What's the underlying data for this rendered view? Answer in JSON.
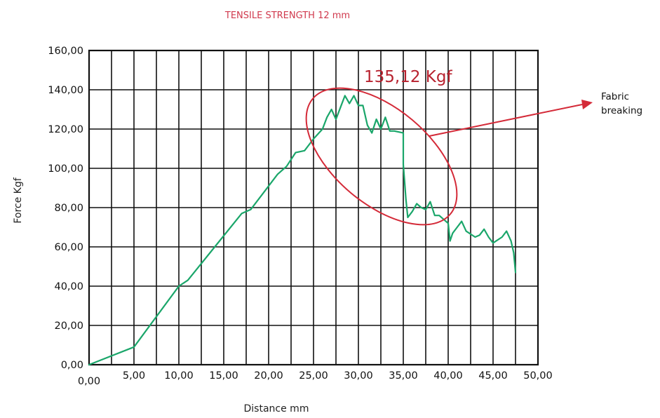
{
  "chart_data": {
    "type": "line",
    "title": "TENSILE STRENGTH 12 mm",
    "xlabel": "Distance mm",
    "ylabel": "Force Kgf",
    "xlim": [
      0,
      50
    ],
    "ylim": [
      0,
      160
    ],
    "grid": true,
    "x_ticks": [
      "0,00",
      "5,00",
      "10,00",
      "15,00",
      "20,00",
      "25,00",
      "30,00",
      "35,00",
      "40,00",
      "45,00",
      "50,00"
    ],
    "y_ticks": [
      "0,00",
      "20,00",
      "40,00",
      "60,00",
      "80,00",
      "100,00",
      "120,00",
      "140,00",
      "160,00"
    ],
    "series": [
      {
        "color": "#1aa66a",
        "points": [
          [
            0,
            0
          ],
          [
            5,
            9
          ],
          [
            10,
            40
          ],
          [
            11,
            43
          ],
          [
            14,
            60
          ],
          [
            17,
            77
          ],
          [
            18,
            79
          ],
          [
            20,
            91
          ],
          [
            21,
            97
          ],
          [
            22,
            101
          ],
          [
            23,
            108
          ],
          [
            24,
            109
          ],
          [
            25,
            115
          ],
          [
            26,
            120
          ],
          [
            26.5,
            126
          ],
          [
            27,
            130
          ],
          [
            27.5,
            125
          ],
          [
            28,
            131
          ],
          [
            28.5,
            137
          ],
          [
            29,
            133
          ],
          [
            29.5,
            137
          ],
          [
            30,
            132
          ],
          [
            30.5,
            132
          ],
          [
            31,
            122
          ],
          [
            31.5,
            118
          ],
          [
            32,
            125
          ],
          [
            32.5,
            120
          ],
          [
            33,
            126
          ],
          [
            33.5,
            119
          ],
          [
            34,
            119
          ],
          [
            35,
            118
          ],
          [
            35,
            102
          ],
          [
            35.3,
            84
          ],
          [
            35.5,
            75
          ],
          [
            36,
            78
          ],
          [
            36.5,
            82
          ],
          [
            37,
            80
          ],
          [
            37.5,
            79
          ],
          [
            38,
            83
          ],
          [
            38.5,
            76
          ],
          [
            39,
            76
          ],
          [
            40,
            72
          ],
          [
            40.2,
            63
          ],
          [
            40.5,
            67
          ],
          [
            41,
            70
          ],
          [
            41.5,
            73
          ],
          [
            42,
            68
          ],
          [
            43,
            65
          ],
          [
            43.5,
            66
          ],
          [
            44,
            69
          ],
          [
            44.5,
            65
          ],
          [
            45,
            62
          ],
          [
            46,
            65
          ],
          [
            46.5,
            68
          ],
          [
            47,
            63
          ],
          [
            47.3,
            57
          ],
          [
            47.5,
            47
          ]
        ]
      }
    ],
    "annotations": {
      "peak_value": "135,12 Kgf",
      "breaking_label_line1": "Fabric",
      "breaking_label_line2": "breaking",
      "ellipse_color": "#d42a38",
      "arrow_color": "#d42a38"
    }
  }
}
